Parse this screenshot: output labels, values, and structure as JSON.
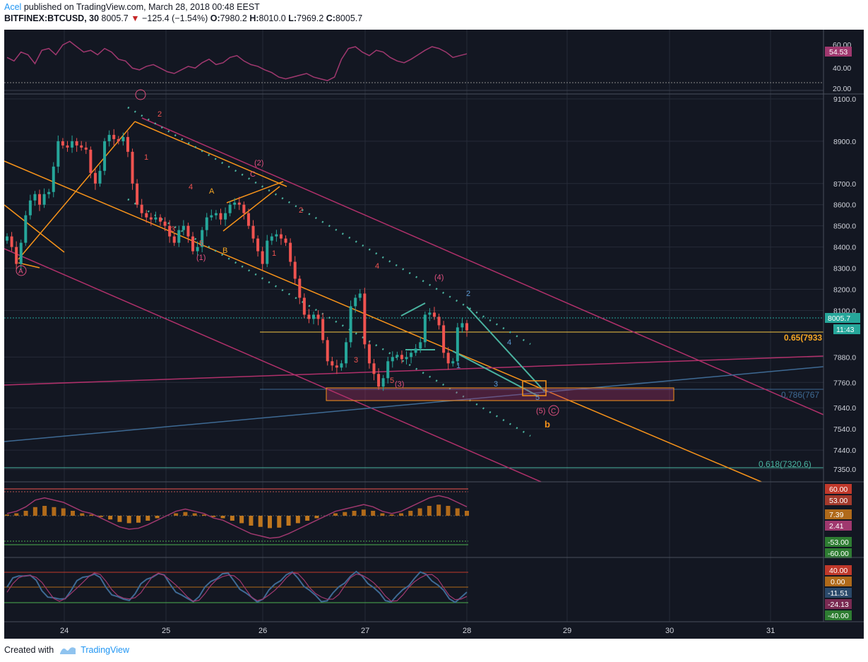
{
  "header": {
    "author": "Acel",
    "published_text": "published on TradingView.com, March 28, 2018 00:48 EEST",
    "symbol": "BITFINEX:BTCUSD, 30",
    "last": "8005.7",
    "change": "−125.4 (−1.54%)",
    "ohlc": {
      "o_label": "O:",
      "o": "7980.2",
      "h_label": "H:",
      "h": "8010.0",
      "l_label": "L:",
      "l": "7969.2",
      "c_label": "C:",
      "c": "8005.7"
    }
  },
  "footer": {
    "created_with": "Created with",
    "brand": "TradingView"
  },
  "colors": {
    "background": "#131722",
    "candle_up": "#26a69a",
    "candle_down": "#ef5350",
    "orange": "#f7931a",
    "magenta": "#b0306a",
    "steel": "#3e6a94",
    "teal": "#4ab3a0",
    "yellow": "#f5c542"
  },
  "chart_data": [
    {
      "type": "candlestick",
      "title": "BITFINEX:BTCUSD, 30",
      "x_labels": [
        "24",
        "25",
        "26",
        "27",
        "28",
        "29",
        "30",
        "31"
      ],
      "y_ticks": [
        "9100.0",
        "8900.0",
        "8700.0",
        "8600.0",
        "8500.0",
        "8400.0",
        "8300.0",
        "8200.0",
        "8100.0",
        "7880.0",
        "7760.0",
        "7640.0",
        "7540.0",
        "7440.0",
        "7350.0"
      ],
      "ylim": [
        7290,
        9110
      ],
      "last_price_label": "8005.7",
      "countdown_label": "11:43",
      "fib_levels": [
        {
          "label": "0.65(7933",
          "price": 7920
        },
        {
          "label": "0.786(767",
          "price": 7655
        },
        {
          "label": "0.618(7320.6)",
          "price": 7330
        }
      ],
      "wave_labels": [
        "A",
        "B",
        "C",
        "1",
        "2",
        "3",
        "4",
        "5",
        "(1)",
        "(2)",
        "(3)",
        "(4)",
        "(5)",
        "b"
      ],
      "close_approx": [
        8450,
        8400,
        8320,
        8420,
        8550,
        8620,
        8650,
        8600,
        8650,
        8660,
        8780,
        8900,
        8880,
        8870,
        8900,
        8880,
        8870,
        8860,
        8750,
        8700,
        8760,
        8900,
        8930,
        8910,
        8900,
        8920,
        8850,
        8700,
        8600,
        8560,
        8540,
        8530,
        8540,
        8520,
        8500,
        8450,
        8420,
        8480,
        8500,
        8450,
        8380,
        8400,
        8480,
        8540,
        8550,
        8560,
        8530,
        8560,
        8600,
        8610,
        8600,
        8560,
        8500,
        8440,
        8380,
        8320,
        8430,
        8450,
        8460,
        8440,
        8420,
        8330,
        8250,
        8160,
        8080,
        8060,
        8080,
        8060,
        7960,
        7860,
        7840,
        7830,
        7850,
        7950,
        8120,
        8160,
        8180,
        7940,
        7850,
        7800,
        7740,
        7780,
        7860,
        7880,
        7890,
        7870,
        7880,
        7900,
        7920,
        7950,
        8080,
        8090,
        8070,
        8030,
        7900,
        7850,
        7860,
        8020,
        8040,
        8005.7
      ]
    },
    {
      "type": "line",
      "name": "RSI pane",
      "y_ticks": [
        "60.00",
        "40.00",
        "20.00"
      ],
      "current_value": "54.53",
      "ylim": [
        15,
        72
      ]
    },
    {
      "type": "bar",
      "name": "Oscillator pane",
      "y_ticks": [
        "60.00",
        "53.00",
        "7.39",
        "2.41",
        "-53.00",
        "-60.00"
      ],
      "ylim": [
        -70,
        70
      ]
    },
    {
      "type": "line",
      "name": "Stochastic pane",
      "y_ticks": [
        "40.00",
        "0.00",
        "-11.51",
        "-24.13",
        "-40.00"
      ],
      "ylim": [
        -56,
        56
      ]
    }
  ]
}
